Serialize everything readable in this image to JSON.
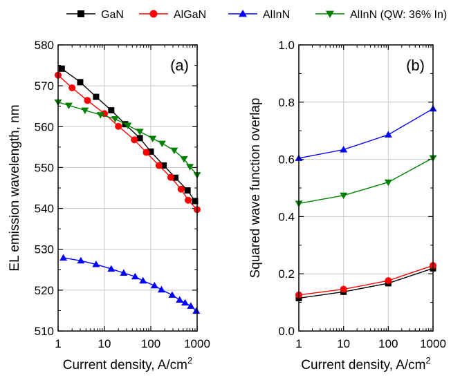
{
  "legend": {
    "items": [
      {
        "label": "GaN",
        "color": "#000000",
        "marker": "square"
      },
      {
        "label": "AlGaN",
        "color": "#ff0000",
        "marker": "circle"
      },
      {
        "label": "AlInN",
        "color": "#0000ff",
        "marker": "triangle-up"
      },
      {
        "label": "AlInN (QW: 36% In)",
        "color": "#008000",
        "marker": "triangle-down"
      }
    ]
  },
  "chart_data": [
    {
      "type": "line",
      "panel_label": "(a)",
      "xlabel": "Current density, A/cm",
      "xlabel_sup": "2",
      "ylabel": "EL emission wavelength, nm",
      "xscale": "log",
      "xlim": [
        1,
        1000
      ],
      "ylim": [
        510,
        580
      ],
      "xticks": [
        1,
        10,
        100,
        1000
      ],
      "xtick_labels": [
        "1",
        "10",
        "100",
        "1000"
      ],
      "yticks": [
        510,
        520,
        530,
        540,
        550,
        560,
        570,
        580
      ],
      "ytick_labels": [
        "510",
        "520",
        "530",
        "540",
        "550",
        "560",
        "570",
        "580"
      ],
      "grid": true,
      "series": [
        {
          "name": "GaN",
          "x": [
            1.2,
            3.0,
            6.6,
            14.0,
            28.0,
            58.0,
            100,
            190,
            340,
            620,
            900
          ],
          "y": [
            574.2,
            570.9,
            567.3,
            564.0,
            560.6,
            557.2,
            553.9,
            550.5,
            547.5,
            544.4,
            541.8
          ]
        },
        {
          "name": "AlGaN",
          "x": [
            1.0,
            2.0,
            4.3,
            10.0,
            20.0,
            44.0,
            80.0,
            150,
            270,
            450,
            640,
            1000
          ],
          "y": [
            572.6,
            569.5,
            566.4,
            563.2,
            560.1,
            556.8,
            553.7,
            550.5,
            547.6,
            544.7,
            542.0,
            539.7
          ]
        },
        {
          "name": "AlInN",
          "x": [
            1.3,
            3.1,
            6.6,
            14.0,
            26.0,
            46.0,
            68.0,
            120,
            170,
            290,
            420,
            550,
            730,
            960
          ],
          "y": [
            527.9,
            527.2,
            526.3,
            525.2,
            524.2,
            523.3,
            522.3,
            521.1,
            520.1,
            518.8,
            517.6,
            516.9,
            516.1,
            514.9
          ]
        },
        {
          "name": "AlInN (QW: 36% In)",
          "x": [
            1.0,
            1.7,
            3.8,
            8.2,
            17.0,
            32.0,
            58.0,
            110,
            175,
            320,
            520,
            700,
            1000
          ],
          "y": [
            566.0,
            565.2,
            564.0,
            562.9,
            561.9,
            560.3,
            558.8,
            557.1,
            555.9,
            554.2,
            552.1,
            550.2,
            548.2
          ]
        }
      ]
    },
    {
      "type": "line",
      "panel_label": "(b)",
      "xlabel": "Current density, A/cm",
      "xlabel_sup": "2",
      "ylabel": "Squared wave function overlap",
      "xscale": "log",
      "xlim": [
        1,
        1000
      ],
      "ylim": [
        0.0,
        1.0
      ],
      "xticks": [
        1,
        10,
        100,
        1000
      ],
      "xtick_labels": [
        "1",
        "10",
        "100",
        "1000"
      ],
      "yticks": [
        0.0,
        0.2,
        0.4,
        0.6,
        0.8,
        1.0
      ],
      "ytick_labels": [
        "0.0",
        "0.2",
        "0.4",
        "0.6",
        "0.8",
        "1.0"
      ],
      "grid": true,
      "series": [
        {
          "name": "GaN",
          "x": [
            1,
            10,
            100,
            1000
          ],
          "y": [
            0.115,
            0.137,
            0.167,
            0.219
          ]
        },
        {
          "name": "AlGaN",
          "x": [
            1,
            10,
            100,
            1000
          ],
          "y": [
            0.126,
            0.146,
            0.176,
            0.229
          ]
        },
        {
          "name": "AlInN",
          "x": [
            1,
            10,
            100,
            1000
          ],
          "y": [
            0.604,
            0.634,
            0.686,
            0.777
          ]
        },
        {
          "name": "AlInN (QW: 36% In)",
          "x": [
            1,
            10,
            100,
            1000
          ],
          "y": [
            0.446,
            0.474,
            0.52,
            0.605
          ]
        }
      ]
    }
  ]
}
